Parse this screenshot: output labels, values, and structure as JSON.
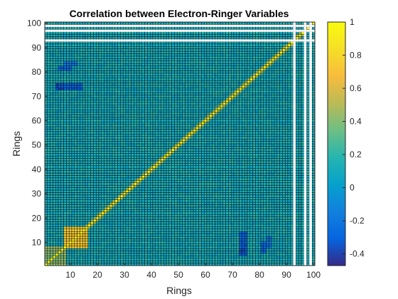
{
  "chart_data": {
    "type": "heatmap",
    "title": "Correlation between Electron-Ringer Variables",
    "xlabel": "Rings",
    "ylabel": "Rings",
    "n": 100,
    "xlim": [
      0.5,
      100.5
    ],
    "ylim": [
      0.5,
      100.5
    ],
    "xticks": [
      10,
      20,
      30,
      40,
      50,
      60,
      70,
      80,
      90,
      100
    ],
    "yticks": [
      10,
      20,
      30,
      40,
      50,
      60,
      70,
      80,
      90,
      100
    ],
    "colorbar": {
      "limits": [
        -0.47,
        1.0
      ],
      "ticks": [
        1,
        0.8,
        0.6,
        0.4,
        0.2,
        0,
        -0.2,
        -0.4
      ],
      "tick_labels": [
        "1",
        "0.8",
        "0.6",
        "0.4",
        "0.2",
        "0",
        "-0.2",
        "-0.4"
      ],
      "colormap": "parula"
    },
    "background_correlation": 0.12,
    "diagonal_value": 1.0,
    "undefined_rings": [
      93,
      97,
      99
    ],
    "highlight_regions": [
      {
        "x": [
          8,
          16
        ],
        "y": [
          8,
          16
        ],
        "value": 0.75
      },
      {
        "x": [
          1,
          8
        ],
        "y": [
          1,
          8
        ],
        "value": 0.4
      },
      {
        "x": [
          73,
          75
        ],
        "y": [
          5,
          10
        ],
        "value": -0.35
      },
      {
        "x": [
          81,
          82
        ],
        "y": [
          6,
          10
        ],
        "value": -0.25
      },
      {
        "x": [
          8,
          14
        ],
        "y": [
          73,
          75
        ],
        "value": -0.3
      },
      {
        "x": [
          8,
          12
        ],
        "y": [
          83,
          84
        ],
        "value": -0.2
      }
    ],
    "grid": true
  }
}
